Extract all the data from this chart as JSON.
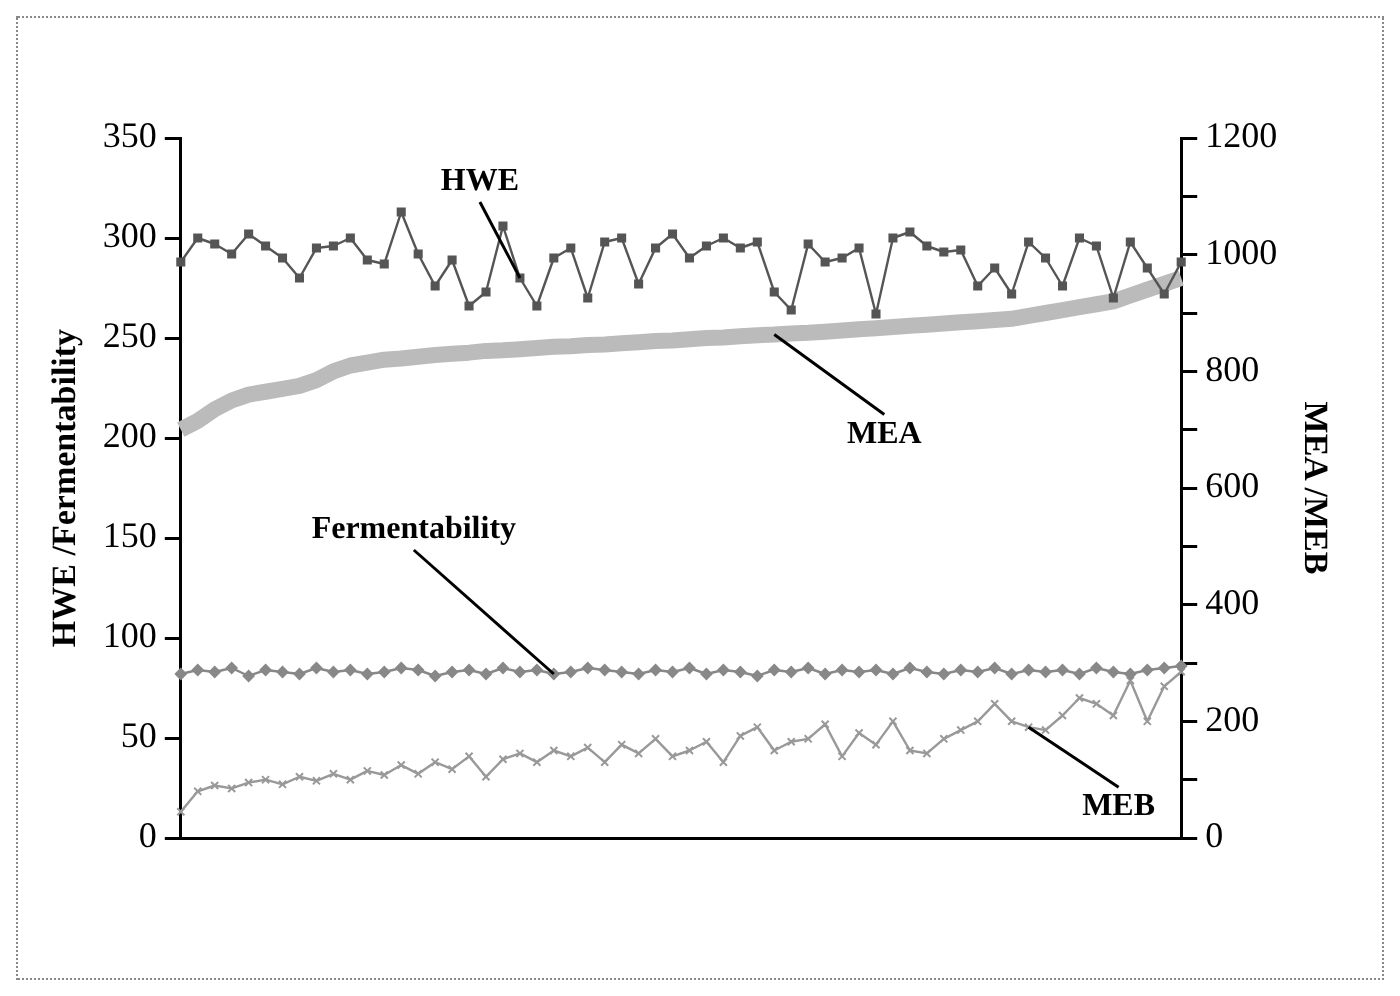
{
  "chart_data": {
    "type": "line",
    "ylabel": "HWE /Fermentability",
    "y2label": "MEA /MEB",
    "categories": [
      null,
      null,
      null,
      null,
      null,
      null,
      null,
      null,
      null,
      null,
      null,
      null,
      null,
      null,
      null,
      null,
      null,
      null,
      null,
      null,
      null,
      null,
      null,
      null,
      null,
      null,
      null,
      null,
      null,
      null,
      null,
      null,
      null,
      null,
      null,
      null,
      null,
      null,
      null,
      null,
      null,
      null,
      null,
      null,
      null,
      null,
      null,
      null,
      null,
      null,
      null,
      null,
      null,
      null,
      null,
      null,
      null,
      null,
      null,
      null
    ],
    "series": [
      {
        "name": "HWE",
        "color": "#555555",
        "marker": "square",
        "values": [
          288,
          300,
          297,
          292,
          302,
          296,
          290,
          280,
          295,
          296,
          300,
          289,
          287,
          313,
          292,
          276,
          289,
          266,
          273,
          306,
          280,
          266,
          290,
          295,
          270,
          298,
          300,
          277,
          295,
          302,
          290,
          296,
          300,
          295,
          298,
          273,
          264,
          297,
          288,
          290,
          295,
          262,
          300,
          303,
          296,
          293,
          294,
          276,
          285,
          272,
          298,
          290,
          276,
          300,
          296,
          270,
          298,
          285,
          272,
          288
        ]
      },
      {
        "name": "MEA",
        "color": "#bbbbbb",
        "axis": "y2",
        "marker": "none",
        "values": [
          700,
          715,
          735,
          750,
          760,
          765,
          770,
          775,
          785,
          800,
          810,
          815,
          820,
          822,
          825,
          828,
          830,
          832,
          835,
          836,
          838,
          840,
          842,
          843,
          845,
          846,
          848,
          850,
          852,
          853,
          855,
          857,
          858,
          860,
          862,
          863,
          865,
          866,
          868,
          870,
          872,
          874,
          876,
          878,
          880,
          882,
          884,
          886,
          888,
          890,
          895,
          900,
          905,
          910,
          915,
          920,
          930,
          940,
          950,
          960
        ]
      },
      {
        "name": "Fermentability",
        "color": "#888888",
        "marker": "diamond",
        "values": [
          82,
          84,
          83,
          85,
          81,
          84,
          83,
          82,
          85,
          83,
          84,
          82,
          83,
          85,
          84,
          81,
          83,
          84,
          82,
          85,
          83,
          84,
          82,
          83,
          85,
          84,
          83,
          82,
          84,
          83,
          85,
          82,
          84,
          83,
          81,
          84,
          83,
          85,
          82,
          84,
          83,
          84,
          82,
          85,
          83,
          82,
          84,
          83,
          85,
          82,
          84,
          83,
          84,
          82,
          85,
          83,
          82,
          84,
          85,
          86
        ]
      },
      {
        "name": "MEB",
        "color": "#999999",
        "axis": "y2",
        "marker": "cross",
        "values": [
          45,
          80,
          90,
          85,
          95,
          100,
          92,
          105,
          98,
          110,
          100,
          115,
          108,
          125,
          110,
          130,
          118,
          140,
          105,
          135,
          145,
          130,
          150,
          140,
          155,
          130,
          160,
          145,
          170,
          140,
          150,
          165,
          130,
          175,
          190,
          150,
          165,
          170,
          195,
          140,
          180,
          160,
          200,
          150,
          145,
          170,
          185,
          200,
          230,
          200,
          190,
          185,
          210,
          240,
          230,
          210,
          270,
          200,
          260,
          285
        ]
      }
    ],
    "ylim": [
      0,
      350
    ],
    "yticks": [
      0,
      50,
      100,
      150,
      200,
      250,
      300,
      350
    ],
    "y2lim": [
      0,
      1200
    ],
    "y2ticks": [
      0,
      {
        "value": 100,
        "label": null
      },
      200,
      {
        "value": 300,
        "label": null
      },
      400,
      {
        "value": 500,
        "label": null
      },
      600,
      {
        "value": 700,
        "label": null
      },
      800,
      {
        "value": 900,
        "label": null
      },
      1000,
      {
        "value": 1100,
        "label": null
      },
      1200
    ],
    "grid": false,
    "legend": false
  }
}
